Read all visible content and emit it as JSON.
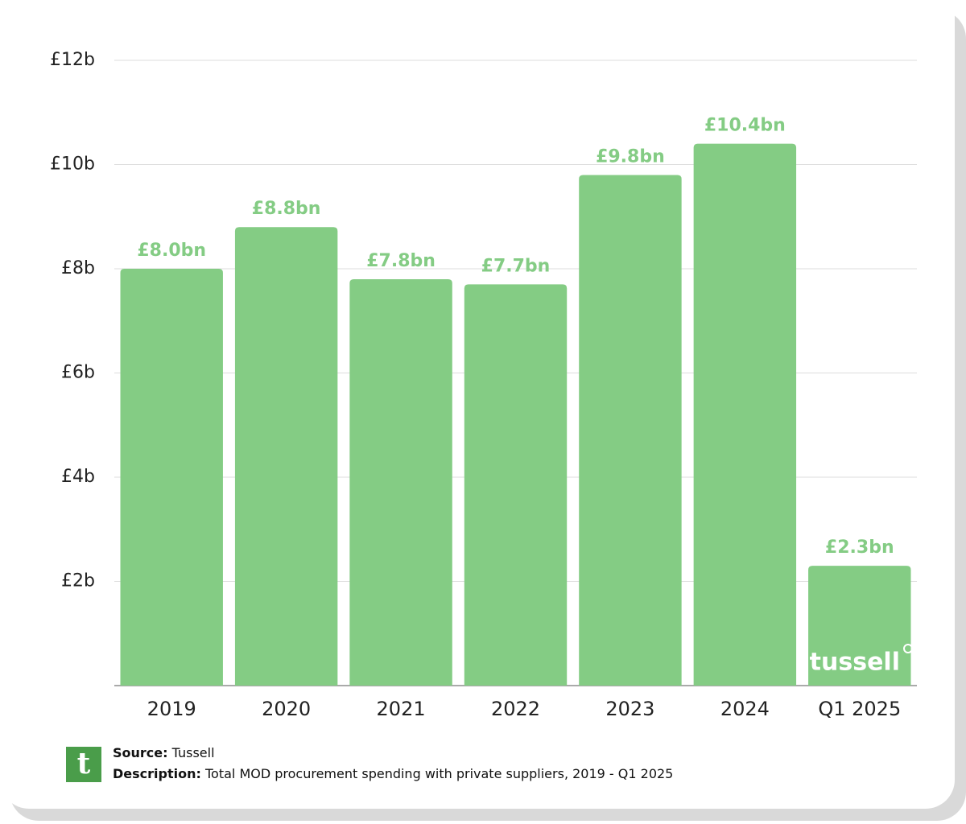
{
  "chart_data": {
    "type": "bar",
    "categories": [
      "2019",
      "2020",
      "2021",
      "2022",
      "2023",
      "2024",
      "Q1 2025"
    ],
    "values": [
      8.0,
      8.8,
      7.8,
      7.7,
      9.8,
      10.4,
      2.3
    ],
    "value_labels": [
      "£8.0bn",
      "£8.8bn",
      "£7.8bn",
      "£7.7bn",
      "£9.8bn",
      "£10.4bn",
      "£2.3bn"
    ],
    "color": "#84cc84",
    "ylim": [
      0,
      12
    ],
    "yticks": [
      {
        "value": 2,
        "label": "£2b"
      },
      {
        "value": 4,
        "label": "£4b"
      },
      {
        "value": 6,
        "label": "£6b"
      },
      {
        "value": 8,
        "label": "£8b"
      },
      {
        "value": 10,
        "label": "£10b"
      },
      {
        "value": 12,
        "label": "£12b"
      }
    ],
    "grid": true,
    "watermark": "tussell",
    "source_label": "Source:",
    "source": "Tussell",
    "description_label": "Description:",
    "description": "Total MOD procurement spending with private suppliers, 2019 - Q1 2025"
  }
}
